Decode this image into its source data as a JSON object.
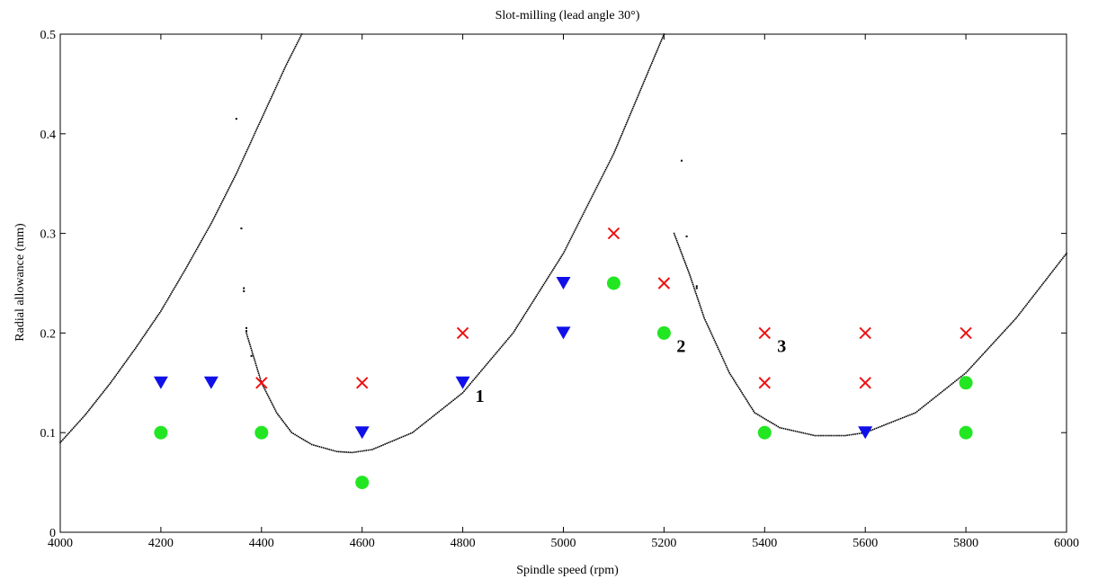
{
  "chart_data": {
    "type": "scatter",
    "title": "Slot-milling (lead angle 30°)",
    "xlabel": "Spindle speed (rpm)",
    "ylabel": "Radial allowance (mm)",
    "xlim": [
      4000,
      6000
    ],
    "ylim": [
      0,
      0.5
    ],
    "xticks": [
      4000,
      4200,
      4400,
      4600,
      4800,
      5000,
      5200,
      5400,
      5600,
      5800,
      6000
    ],
    "yticks": [
      0,
      0.1,
      0.2,
      0.3,
      0.4,
      0.5
    ],
    "grid": false,
    "series": [
      {
        "marker": "circle",
        "color": "#22e622",
        "points": [
          [
            4200,
            0.1
          ],
          [
            4400,
            0.1
          ],
          [
            4600,
            0.05
          ],
          [
            5100,
            0.25
          ],
          [
            5200,
            0.2
          ],
          [
            5400,
            0.1
          ],
          [
            5800,
            0.15
          ],
          [
            5800,
            0.1
          ]
        ]
      },
      {
        "marker": "triangle-down",
        "color": "#1010e8",
        "points": [
          [
            4200,
            0.15
          ],
          [
            4300,
            0.15
          ],
          [
            4600,
            0.1
          ],
          [
            4800,
            0.15
          ],
          [
            5000,
            0.25
          ],
          [
            5000,
            0.2
          ],
          [
            5600,
            0.1
          ]
        ]
      },
      {
        "marker": "x",
        "color": "#ee1111",
        "points": [
          [
            4400,
            0.15
          ],
          [
            4600,
            0.15
          ],
          [
            4800,
            0.2
          ],
          [
            5100,
            0.3
          ],
          [
            5200,
            0.25
          ],
          [
            5400,
            0.2
          ],
          [
            5400,
            0.15
          ],
          [
            5600,
            0.2
          ],
          [
            5600,
            0.15
          ],
          [
            5800,
            0.2
          ]
        ]
      },
      {
        "marker": "dot",
        "color": "#000000",
        "segments": [
          [
            [
              4000,
              0.09
            ],
            [
              4050,
              0.118
            ],
            [
              4100,
              0.15
            ],
            [
              4150,
              0.185
            ],
            [
              4200,
              0.222
            ],
            [
              4250,
              0.265
            ],
            [
              4300,
              0.31
            ],
            [
              4350,
              0.36
            ],
            [
              4400,
              0.415
            ],
            [
              4450,
              0.47
            ],
            [
              4480,
              0.5
            ]
          ],
          [
            [
              4370,
              0.2
            ],
            [
              4400,
              0.15
            ],
            [
              4430,
              0.12
            ],
            [
              4460,
              0.1
            ],
            [
              4500,
              0.088
            ],
            [
              4550,
              0.081
            ],
            [
              4580,
              0.08
            ],
            [
              4620,
              0.083
            ],
            [
              4700,
              0.1
            ],
            [
              4800,
              0.14
            ],
            [
              4900,
              0.2
            ],
            [
              5000,
              0.28
            ],
            [
              5100,
              0.38
            ],
            [
              5150,
              0.44
            ],
            [
              5200,
              0.5
            ]
          ],
          [
            [
              5220,
              0.3
            ],
            [
              5250,
              0.26
            ],
            [
              5280,
              0.215
            ],
            [
              5330,
              0.16
            ],
            [
              5380,
              0.12
            ],
            [
              5430,
              0.105
            ],
            [
              5500,
              0.097
            ],
            [
              5560,
              0.097
            ],
            [
              5600,
              0.1
            ],
            [
              5700,
              0.12
            ],
            [
              5800,
              0.16
            ],
            [
              5900,
              0.215
            ],
            [
              6000,
              0.28
            ]
          ]
        ],
        "stray": [
          [
            4350,
            0.415
          ],
          [
            4360,
            0.305
          ],
          [
            4365,
            0.245
          ],
          [
            4365,
            0.242
          ],
          [
            4370,
            0.205
          ],
          [
            4370,
            0.202
          ],
          [
            4380,
            0.177
          ],
          [
            5235,
            0.373
          ],
          [
            5245,
            0.297
          ],
          [
            5265,
            0.247
          ],
          [
            5265,
            0.245
          ]
        ]
      }
    ],
    "annotations": [
      {
        "text": "1",
        "x": 4800,
        "y": 0.15
      },
      {
        "text": "2",
        "x": 5200,
        "y": 0.2
      },
      {
        "text": "3",
        "x": 5400,
        "y": 0.2
      }
    ]
  }
}
